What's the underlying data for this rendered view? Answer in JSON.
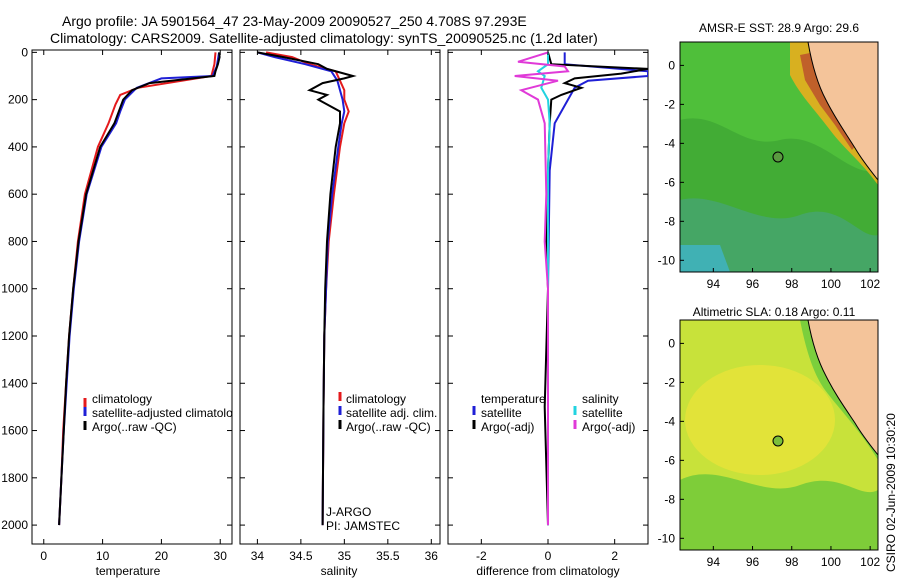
{
  "header": {
    "line1": "Argo profile: JA 5901564_47 23-May-2009 20090527_250 4.708S 97.293E",
    "line2": "Climatology: CARS2009. Satellite-adjusted climatology: synTS_20090525.nc (1.2d later)"
  },
  "credit": "CSIRO 02-Jun-2009 10:30:20",
  "colors": {
    "red": "#e41a1c",
    "blue": "#1f1fd6",
    "black": "#000000",
    "cyan": "#22d3e0",
    "magenta": "#e03ad8",
    "land": "#f4c49a"
  },
  "chart_data": [
    {
      "type": "line",
      "name": "temperature",
      "xlabel": "temperature",
      "ylabel": "",
      "xlim": [
        -2,
        32
      ],
      "ylim": [
        2080,
        -10
      ],
      "xticks": [
        "0",
        "10",
        "20",
        "30"
      ],
      "yticks": [
        "0",
        "200",
        "400",
        "600",
        "800",
        "1000",
        "1200",
        "1400",
        "1600",
        "1800",
        "2000"
      ],
      "legend": {
        "position": "bottom-left",
        "entries": [
          "climatology",
          "satellite-adjusted climatology",
          "Argo(..raw -QC)"
        ]
      },
      "series": [
        {
          "name": "climatology",
          "color": "red",
          "depth": [
            0,
            50,
            100,
            150,
            180,
            220,
            300,
            400,
            600,
            800,
            1000,
            1200,
            1400,
            1600,
            1800,
            2000
          ],
          "values": [
            29.2,
            29.0,
            28.5,
            16.0,
            13.0,
            12.2,
            11.0,
            9.2,
            7.0,
            5.8,
            5.0,
            4.3,
            3.8,
            3.3,
            3.0,
            2.6
          ]
        },
        {
          "name": "satellite-adjusted climatology",
          "color": "blue",
          "depth": [
            0,
            30,
            60,
            100,
            110,
            150,
            200,
            250,
            300,
            400,
            600,
            800,
            1000,
            1200,
            1400,
            1600,
            1800,
            2000
          ],
          "values": [
            29.8,
            29.6,
            29.4,
            28.7,
            20.0,
            15.8,
            13.8,
            13.0,
            12.3,
            9.8,
            7.3,
            6.0,
            5.1,
            4.4,
            3.9,
            3.4,
            3.0,
            2.6
          ]
        },
        {
          "name": "Argo(..raw -QC)",
          "color": "black",
          "depth": [
            0,
            20,
            50,
            80,
            100,
            130,
            160,
            200,
            300,
            400,
            600,
            800,
            1000,
            1200,
            1400,
            1600,
            1800,
            2000
          ],
          "values": [
            29.8,
            29.9,
            29.6,
            29.2,
            29.0,
            18.0,
            15.0,
            13.5,
            12.0,
            9.6,
            7.2,
            5.9,
            5.0,
            4.3,
            3.8,
            3.4,
            3.0,
            2.6
          ]
        }
      ]
    },
    {
      "type": "line",
      "name": "salinity",
      "xlabel": "salinity",
      "xlim": [
        33.8,
        36.1
      ],
      "ylim": [
        2080,
        -10
      ],
      "xticks": [
        "34",
        "34.5",
        "35",
        "35.5",
        "36"
      ],
      "legend": {
        "position": "bottom-right",
        "entries": [
          "climatology",
          "satellite adj. clim.",
          "Argo(..raw -QC)"
        ]
      },
      "annotations": [
        "J-ARGO",
        "PI: JAMSTEC"
      ],
      "series": [
        {
          "name": "climatology",
          "color": "red",
          "depth": [
            0,
            20,
            50,
            80,
            120,
            160,
            200,
            250,
            300,
            400,
            600,
            800,
            1000,
            1200,
            1500,
            2000
          ],
          "values": [
            34.1,
            34.4,
            34.6,
            34.9,
            34.95,
            35.0,
            35.0,
            35.05,
            35.0,
            34.95,
            34.88,
            34.82,
            34.79,
            34.77,
            34.76,
            34.75
          ]
        },
        {
          "name": "satellite adj. clim.",
          "color": "blue",
          "depth": [
            0,
            20,
            50,
            80,
            120,
            160,
            200,
            250,
            300,
            400,
            600,
            800,
            1000,
            1200,
            1500,
            2000
          ],
          "values": [
            34.0,
            34.2,
            34.55,
            34.85,
            34.92,
            34.95,
            34.98,
            35.0,
            34.97,
            34.93,
            34.86,
            34.81,
            34.79,
            34.77,
            34.76,
            34.75
          ]
        },
        {
          "name": "Argo(..raw -QC)",
          "color": "black",
          "depth": [
            0,
            20,
            50,
            70,
            100,
            110,
            130,
            160,
            180,
            200,
            220,
            250,
            300,
            400,
            600,
            800,
            1000,
            1200,
            1500,
            2000
          ],
          "values": [
            34.0,
            34.3,
            34.7,
            34.8,
            35.1,
            35.0,
            34.75,
            34.6,
            34.8,
            34.7,
            34.8,
            34.95,
            34.95,
            34.9,
            34.84,
            34.8,
            34.78,
            34.77,
            34.76,
            34.75
          ]
        }
      ]
    },
    {
      "type": "line",
      "name": "difference from climatology",
      "xlabel": "difference from climatology",
      "xlim": [
        -3,
        3
      ],
      "ylim": [
        2080,
        -10
      ],
      "xticks": [
        "-2",
        "0",
        "2"
      ],
      "legend": {
        "position": "bottom",
        "entries": [
          "temperature",
          "satellite",
          "Argo(-adj)",
          "salinity",
          "satellite",
          "Argo(-adj)"
        ]
      },
      "series": [
        {
          "name": "temperature satellite",
          "color": "blue",
          "depth": [
            0,
            50,
            80,
            100,
            120,
            150,
            200,
            300,
            500,
            1000,
            1500,
            2000
          ],
          "values": [
            0.5,
            0.5,
            3.0,
            3.0,
            1.2,
            0.8,
            0.6,
            0.2,
            0.05,
            0.0,
            0.0,
            0.0
          ]
        },
        {
          "name": "temperature Argo(-adj)",
          "color": "black",
          "depth": [
            0,
            50,
            70,
            90,
            110,
            130,
            150,
            180,
            200,
            300,
            500,
            800,
            1000,
            1500,
            2000
          ],
          "values": [
            0.0,
            0.1,
            3.0,
            2.2,
            0.8,
            0.5,
            1.0,
            0.4,
            0.1,
            0.05,
            0.0,
            -0.05,
            0.0,
            -0.1,
            0.0
          ]
        },
        {
          "name": "salinity satellite",
          "color": "cyan",
          "depth": [
            0,
            50,
            80,
            100,
            150,
            200,
            300,
            500,
            1000,
            1500,
            2000
          ],
          "values": [
            0.0,
            0.0,
            -0.3,
            -0.1,
            -0.2,
            0.0,
            0.05,
            0.0,
            0.0,
            0.0,
            0.0
          ]
        },
        {
          "name": "salinity Argo(-adj)",
          "color": "magenta",
          "depth": [
            0,
            40,
            60,
            80,
            100,
            120,
            160,
            200,
            300,
            600,
            800,
            1000,
            1500,
            2000
          ],
          "values": [
            0.0,
            -0.9,
            0.5,
            0.6,
            -1.0,
            0.3,
            -0.8,
            -0.3,
            -0.1,
            -0.05,
            -0.1,
            0.0,
            0.0,
            0.0
          ]
        }
      ]
    },
    {
      "type": "heatmap",
      "name": "sst map",
      "title": "AMSR-E SST: 28.9 Argo: 29.6",
      "xticks": [
        "94",
        "96",
        "98",
        "100",
        "102"
      ],
      "yticks": [
        "0",
        "-2",
        "-4",
        "-6",
        "-8",
        "-10"
      ],
      "argo_position": {
        "lon": 97.293,
        "lat": -4.708
      }
    },
    {
      "type": "heatmap",
      "name": "sla map",
      "title": "Altimetric SLA: 0.18 Argo: 0.11",
      "xticks": [
        "94",
        "96",
        "98",
        "100",
        "102"
      ],
      "yticks": [
        "0",
        "-2",
        "-4",
        "-6",
        "-8",
        "-10"
      ],
      "argo_position": {
        "lon": 97.293,
        "lat": -4.708
      }
    }
  ]
}
